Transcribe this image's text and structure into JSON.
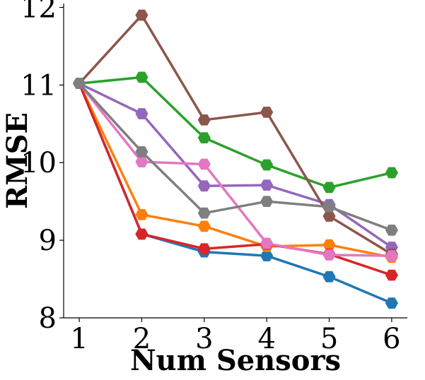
{
  "chart_data": {
    "type": "line",
    "title": "",
    "xlabel": "Num Sensors",
    "ylabel": "RMSE",
    "x": [
      1,
      2,
      3,
      4,
      5,
      6
    ],
    "xlim": [
      0.75,
      6.25
    ],
    "ylim": [
      8,
      12.05
    ],
    "xticks": [
      1,
      2,
      3,
      4,
      5,
      6
    ],
    "yticks": [
      8,
      9,
      10,
      11,
      12
    ],
    "grid": false,
    "legend": "none",
    "marker": "hexagon",
    "series": [
      {
        "color": "#1f77b4",
        "values": [
          11.02,
          9.08,
          8.85,
          8.8,
          8.53,
          8.19
        ]
      },
      {
        "color": "#ff7f0e",
        "values": [
          11.02,
          9.33,
          9.18,
          8.92,
          8.94,
          8.78
        ]
      },
      {
        "color": "#2ca02c",
        "values": [
          11.02,
          11.1,
          10.32,
          9.97,
          9.68,
          9.87
        ]
      },
      {
        "color": "#d62728",
        "values": [
          11.02,
          9.08,
          8.89,
          8.95,
          8.82,
          8.55
        ]
      },
      {
        "color": "#9467bd",
        "values": [
          11.02,
          10.63,
          9.7,
          9.71,
          9.46,
          8.91
        ]
      },
      {
        "color": "#8c564b",
        "values": [
          11.02,
          11.9,
          10.55,
          10.65,
          9.31,
          8.82
        ]
      },
      {
        "color": "#e377c2",
        "values": [
          11.02,
          10.01,
          9.98,
          8.96,
          8.81,
          8.8
        ]
      },
      {
        "color": "#7f7f7f",
        "values": [
          11.02,
          10.14,
          9.35,
          9.5,
          9.43,
          9.13
        ]
      }
    ]
  }
}
